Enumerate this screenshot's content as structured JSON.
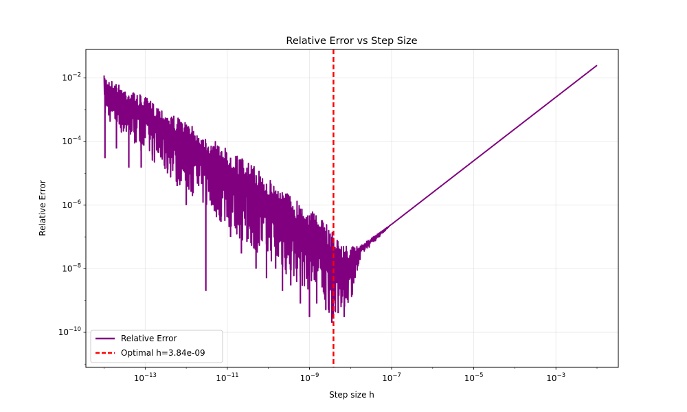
{
  "chart_data": {
    "type": "line",
    "title": "Relative Error vs Step Size",
    "xlabel": "Step size h",
    "ylabel": "Relative Error",
    "xscale": "log",
    "yscale": "log",
    "xlim": [
      3.6e-15,
      0.033
    ],
    "ylim": [
      7.9e-12,
      0.079
    ],
    "x_ticks": [
      {
        "value": 1e-13,
        "base": "10",
        "exp": "−13"
      },
      {
        "value": 1e-11,
        "base": "10",
        "exp": "−11"
      },
      {
        "value": 1e-09,
        "base": "10",
        "exp": "−9"
      },
      {
        "value": 1e-07,
        "base": "10",
        "exp": "−7"
      },
      {
        "value": 1e-05,
        "base": "10",
        "exp": "−5"
      },
      {
        "value": 0.001,
        "base": "10",
        "exp": "−3"
      }
    ],
    "y_ticks": [
      {
        "value": 1e-10,
        "base": "10",
        "exp": "−10"
      },
      {
        "value": 1e-08,
        "base": "10",
        "exp": "−8"
      },
      {
        "value": 1e-06,
        "base": "10",
        "exp": "−6"
      },
      {
        "value": 0.0001,
        "base": "10",
        "exp": "−4"
      },
      {
        "value": 0.01,
        "base": "10",
        "exp": "−2"
      }
    ],
    "grid": true,
    "legend_position": "lower-left",
    "series": [
      {
        "name": "Relative Error",
        "color": "#800080",
        "style": "solid",
        "x": [
          1e-14,
          3e-14,
          1e-13,
          3e-13,
          1e-12,
          3e-12,
          1e-11,
          3e-11,
          1e-10,
          3e-10,
          1e-09,
          2e-09,
          3.84e-09,
          6e-09,
          1e-08,
          2e-08,
          1e-07,
          1e-06,
          1e-05,
          0.0001,
          0.001,
          0.01
        ],
        "upper": [
          0.012,
          0.005,
          0.0025,
          0.001,
          0.0004,
          0.00015,
          6e-05,
          2.5e-05,
          7e-06,
          2.5e-06,
          8e-07,
          3.5e-07,
          1.5e-07,
          6e-08,
          5e-08,
          6e-08,
          2.5e-07,
          2.5e-06,
          2.5e-05,
          0.00025,
          0.0025,
          0.025
        ],
        "lower": [
          0.0006,
          0.00015,
          4e-05,
          1e-05,
          3e-06,
          8e-07,
          2e-07,
          5e-08,
          2e-08,
          5e-09,
          2e-09,
          1e-09,
          2e-10,
          5e-10,
          1e-09,
          3e-08,
          2.5e-07,
          2.5e-06,
          2.5e-05,
          0.00025,
          0.0025,
          0.025
        ],
        "dips": [
          {
            "x": 1.05e-14,
            "y": 3e-05
          },
          {
            "x": 2e-14,
            "y": 6e-05
          },
          {
            "x": 4e-14,
            "y": 1.5e-05
          },
          {
            "x": 8e-14,
            "y": 1.5e-05
          },
          {
            "x": 1.5e-13,
            "y": 4e-05
          },
          {
            "x": 3.5e-13,
            "y": 1e-05
          },
          {
            "x": 6e-13,
            "y": 4e-06
          },
          {
            "x": 1e-12,
            "y": 1e-06
          },
          {
            "x": 2e-12,
            "y": 4e-06
          },
          {
            "x": 3e-12,
            "y": 2e-09
          },
          {
            "x": 4.5e-12,
            "y": 1e-06
          },
          {
            "x": 7e-12,
            "y": 3e-07
          },
          {
            "x": 1.2e-11,
            "y": 1e-07
          },
          {
            "x": 2.2e-11,
            "y": 3e-08
          },
          {
            "x": 3e-11,
            "y": 7e-08
          },
          {
            "x": 5e-11,
            "y": 1e-08
          },
          {
            "x": 9e-11,
            "y": 5e-09
          },
          {
            "x": 1.5e-10,
            "y": 1e-08
          },
          {
            "x": 2.2e-10,
            "y": 2e-09
          },
          {
            "x": 3.5e-10,
            "y": 3e-09
          },
          {
            "x": 6e-10,
            "y": 8e-10
          },
          {
            "x": 1e-09,
            "y": 3e-10
          },
          {
            "x": 1.5e-09,
            "y": 8e-10
          },
          {
            "x": 2.5e-09,
            "y": 5e-10
          },
          {
            "x": 3.5e-09,
            "y": 2e-10
          },
          {
            "x": 5e-09,
            "y": 4e-10
          },
          {
            "x": 7e-09,
            "y": 3e-10
          },
          {
            "x": 1.1e-08,
            "y": 1.5e-09
          }
        ]
      },
      {
        "name": "Optimal h=3.84e-09",
        "color": "#ff0000",
        "style": "dashed",
        "vline_x": 3.84e-09
      }
    ]
  }
}
